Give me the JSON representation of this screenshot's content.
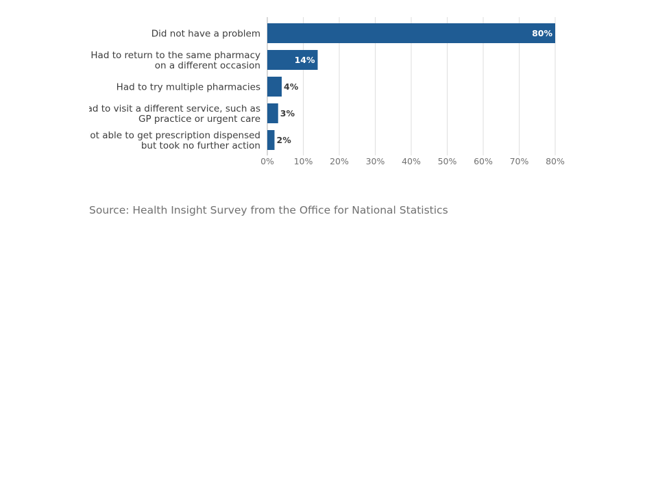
{
  "chart_data": {
    "type": "bar",
    "orientation": "horizontal",
    "categories": [
      [
        "Did not have a problem"
      ],
      [
        "Had to return to the same pharmacy",
        "on a different occasion"
      ],
      [
        "Had to try multiple pharmacies"
      ],
      [
        "Had to visit a different service, such as",
        "GP practice or urgent care"
      ],
      [
        "Not able to get prescription dispensed",
        "but took no further action"
      ]
    ],
    "values": [
      80,
      14,
      4,
      3,
      2
    ],
    "data_labels": [
      "80%",
      "14%",
      "4%",
      "3%",
      "2%"
    ],
    "x_ticks": [
      "0%",
      "10%",
      "20%",
      "30%",
      "40%",
      "50%",
      "60%",
      "70%",
      "80%"
    ],
    "xlim": [
      0,
      80
    ],
    "grid": true,
    "bar_color": "#1f5c94",
    "label_inside_color": "#ffffff",
    "label_outside_color": "#3c3c3c",
    "gridline_color": "#dedede",
    "axis_color": "#b0b0b0"
  },
  "source": "Source: Health Insight Survey from the Office for National Statistics"
}
